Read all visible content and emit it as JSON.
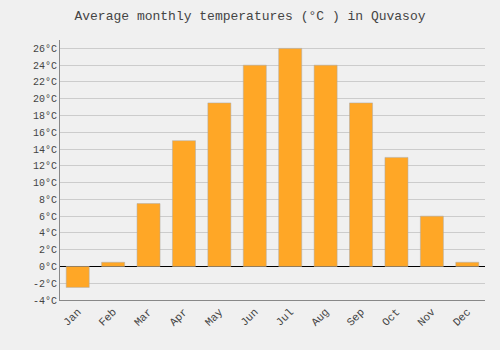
{
  "chart_data": {
    "type": "bar",
    "title": "Average monthly temperatures (°C ) in Quvasoy",
    "categories": [
      "Jan",
      "Feb",
      "Mar",
      "Apr",
      "May",
      "Jun",
      "Jul",
      "Aug",
      "Sep",
      "Oct",
      "Nov",
      "Dec"
    ],
    "values": [
      -2.5,
      0.5,
      7.5,
      15.0,
      19.5,
      24.0,
      26.0,
      24.0,
      19.5,
      13.0,
      6.0,
      0.5
    ],
    "color": "#FFA726",
    "ylim": [
      -4,
      27
    ],
    "yticks": [
      {
        "value": -4,
        "label": "-4°C"
      },
      {
        "value": -2,
        "label": "-2°C"
      },
      {
        "value": 0,
        "label": "0°C"
      },
      {
        "value": 2,
        "label": "2°C"
      },
      {
        "value": 4,
        "label": "4°C"
      },
      {
        "value": 6,
        "label": "6°C"
      },
      {
        "value": 8,
        "label": "8°C"
      },
      {
        "value": 10,
        "label": "10°C"
      },
      {
        "value": 12,
        "label": "12°C"
      },
      {
        "value": 14,
        "label": "14°C"
      },
      {
        "value": 16,
        "label": "16°C"
      },
      {
        "value": 18,
        "label": "18°C"
      },
      {
        "value": 20,
        "label": "20°C"
      },
      {
        "value": 22,
        "label": "22°C"
      },
      {
        "value": 24,
        "label": "24°C"
      },
      {
        "value": 26,
        "label": "26°C"
      }
    ],
    "grid": true
  }
}
